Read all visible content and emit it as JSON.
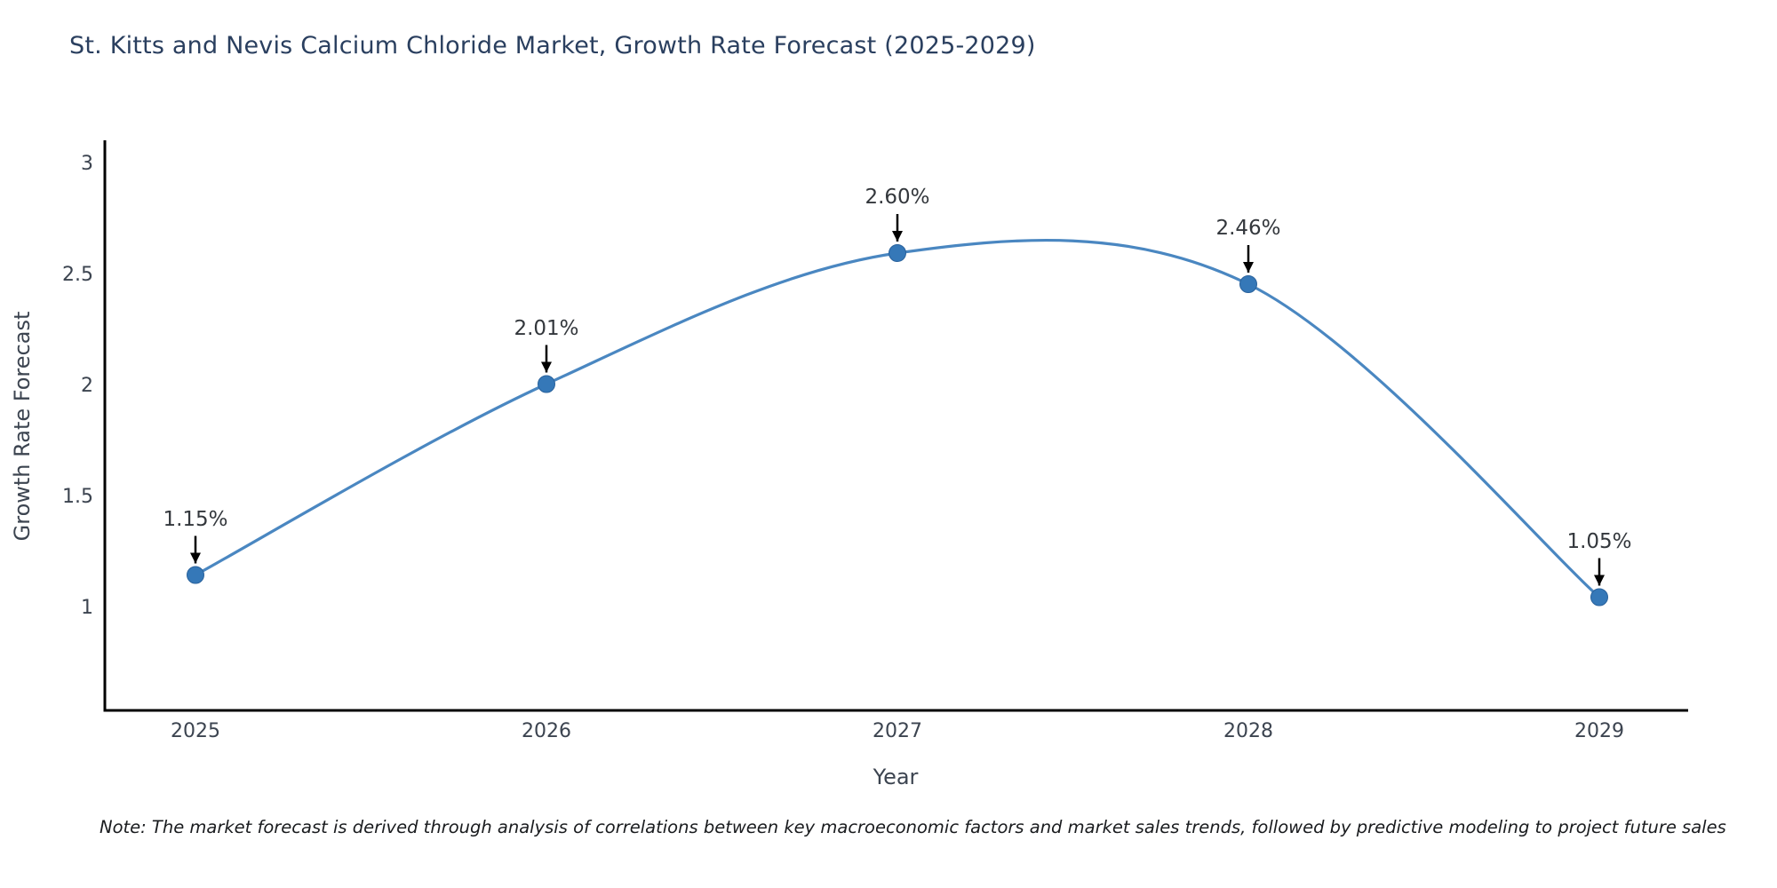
{
  "title": "St. Kitts and Nevis Calcium Chloride Market, Growth Rate Forecast (2025-2029)",
  "note": "Note: The market forecast is derived through analysis of correlations between key macroeconomic factors and market sales trends, followed by predictive modeling to project future sales",
  "chart_data": {
    "type": "line",
    "title": "St. Kitts and Nevis Calcium Chloride Market, Growth Rate Forecast (2025-2029)",
    "x": [
      2025,
      2026,
      2027,
      2028,
      2029
    ],
    "x_labels": [
      "2025",
      "2026",
      "2027",
      "2028",
      "2029"
    ],
    "series": [
      {
        "name": "Growth Rate Forecast",
        "values": [
          1.15,
          2.01,
          2.6,
          2.46,
          1.05
        ]
      }
    ],
    "point_labels": [
      "1.15%",
      "2.01%",
      "2.60%",
      "2.46%",
      "1.05%"
    ],
    "xlabel": "Year",
    "ylabel": "Growth Rate Forecast",
    "y_ticks": [
      "3",
      "2.5",
      "2",
      "1.5",
      "1"
    ],
    "y_tick_values": [
      3,
      2.5,
      2,
      1.5,
      1
    ],
    "ylim": [
      0.54,
      3.11
    ],
    "grid": false,
    "legend": "none",
    "smooth_curve": true,
    "annotation_style": "value label with black down arrow to point",
    "colors": {
      "line": "#4a87c1",
      "marker": "#3578b8",
      "marker_edge": "#2a629c",
      "arrow": "#000000",
      "axis": "#000000",
      "title_text": "#2a3f5f",
      "tick_text": "#3c4450",
      "annotation_text": "#33373c",
      "background": "#ffffff"
    }
  }
}
